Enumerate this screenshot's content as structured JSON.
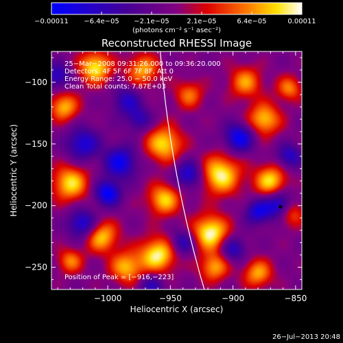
{
  "chart_data": {
    "type": "heatmap",
    "title": "Reconstructed RHESSI Image",
    "xlabel": "Heliocentric X (arcsec)",
    "ylabel": "Heliocentric Y (arcsec)",
    "xlim": [
      -1045,
      -845
    ],
    "ylim": [
      -268,
      -75
    ],
    "x_ticks": [
      -1000,
      -950,
      -900,
      -850
    ],
    "x_tick_labels": [
      "−1000",
      "−950",
      "−900",
      "−850"
    ],
    "y_ticks": [
      -250,
      -200,
      -150,
      -100
    ],
    "y_tick_labels": [
      "−250",
      "−200",
      "−150",
      "−100"
    ],
    "colorbar": {
      "min": -0.00011,
      "max": 0.00011,
      "tick_labels": [
        "−0.00011",
        "−6.4e−05",
        "−2.1e−05",
        "2.1e−05",
        "6.4e−05",
        "0.00011"
      ],
      "units": "(photons cm⁻² s⁻¹ asec⁻²)"
    },
    "annotations": [
      "25−Mar−2008 09:31:26.000 to 09:36:20.000",
      "Detectors: 4F 5F 6F 7F 8F, Att 0",
      "Energy Range: 25.0 − 50.0 keV",
      "Clean     Total counts: 7.87E+03"
    ],
    "peak_label": "Position of Peak = [−916,−223]",
    "peak": [
      -916,
      -223
    ],
    "footer": "26−Jul−2013 20:48",
    "sources": [
      {
        "x": -1010,
        "y": -88,
        "amp": 0.9,
        "s": 9
      },
      {
        "x": -1035,
        "y": -120,
        "amp": 0.75,
        "s": 8
      },
      {
        "x": -1030,
        "y": -182,
        "amp": 0.85,
        "s": 10
      },
      {
        "x": -1005,
        "y": -225,
        "amp": 0.8,
        "s": 9
      },
      {
        "x": -1030,
        "y": -245,
        "amp": 0.6,
        "s": 7
      },
      {
        "x": -985,
        "y": -250,
        "amp": 0.75,
        "s": 9
      },
      {
        "x": -960,
        "y": -240,
        "amp": 0.95,
        "s": 10
      },
      {
        "x": -955,
        "y": -195,
        "amp": 0.8,
        "s": 9
      },
      {
        "x": -955,
        "y": -150,
        "amp": 0.85,
        "s": 10
      },
      {
        "x": -972,
        "y": -90,
        "amp": 0.7,
        "s": 9
      },
      {
        "x": -975,
        "y": -130,
        "amp": -0.5,
        "s": 7
      },
      {
        "x": -935,
        "y": -110,
        "amp": 0.55,
        "s": 8
      },
      {
        "x": -918,
        "y": -222,
        "amp": 1.0,
        "s": 10
      },
      {
        "x": -910,
        "y": -175,
        "amp": 0.95,
        "s": 11
      },
      {
        "x": -915,
        "y": -250,
        "amp": 0.7,
        "s": 8
      },
      {
        "x": -890,
        "y": -100,
        "amp": 0.65,
        "s": 9
      },
      {
        "x": -875,
        "y": -130,
        "amp": 0.8,
        "s": 9
      },
      {
        "x": -870,
        "y": -180,
        "amp": 0.85,
        "s": 9
      },
      {
        "x": -855,
        "y": -205,
        "amp": 0.75,
        "s": 8
      },
      {
        "x": -880,
        "y": -255,
        "amp": 0.7,
        "s": 8
      },
      {
        "x": -855,
        "y": -105,
        "amp": 0.6,
        "s": 7
      },
      {
        "x": -1020,
        "y": -150,
        "amp": -0.7,
        "s": 9
      },
      {
        "x": -990,
        "y": -165,
        "amp": -0.8,
        "s": 9
      },
      {
        "x": -935,
        "y": -175,
        "amp": -0.7,
        "s": 8
      },
      {
        "x": -1000,
        "y": -190,
        "amp": -0.9,
        "s": 7
      },
      {
        "x": -1020,
        "y": -215,
        "amp": -0.75,
        "s": 8
      },
      {
        "x": -985,
        "y": -115,
        "amp": -0.55,
        "s": 8
      },
      {
        "x": -940,
        "y": -230,
        "amp": -0.6,
        "s": 7
      },
      {
        "x": -895,
        "y": -145,
        "amp": -0.85,
        "s": 8
      },
      {
        "x": -880,
        "y": -205,
        "amp": -0.7,
        "s": 7
      },
      {
        "x": -862,
        "y": -200,
        "amp": -1.0,
        "s": 8
      },
      {
        "x": -900,
        "y": -235,
        "amp": -0.6,
        "s": 7
      },
      {
        "x": -1040,
        "y": -95,
        "amp": -0.6,
        "s": 7
      },
      {
        "x": -965,
        "y": -265,
        "amp": -0.5,
        "s": 7
      },
      {
        "x": -855,
        "y": -160,
        "amp": -0.6,
        "s": 7
      }
    ]
  }
}
